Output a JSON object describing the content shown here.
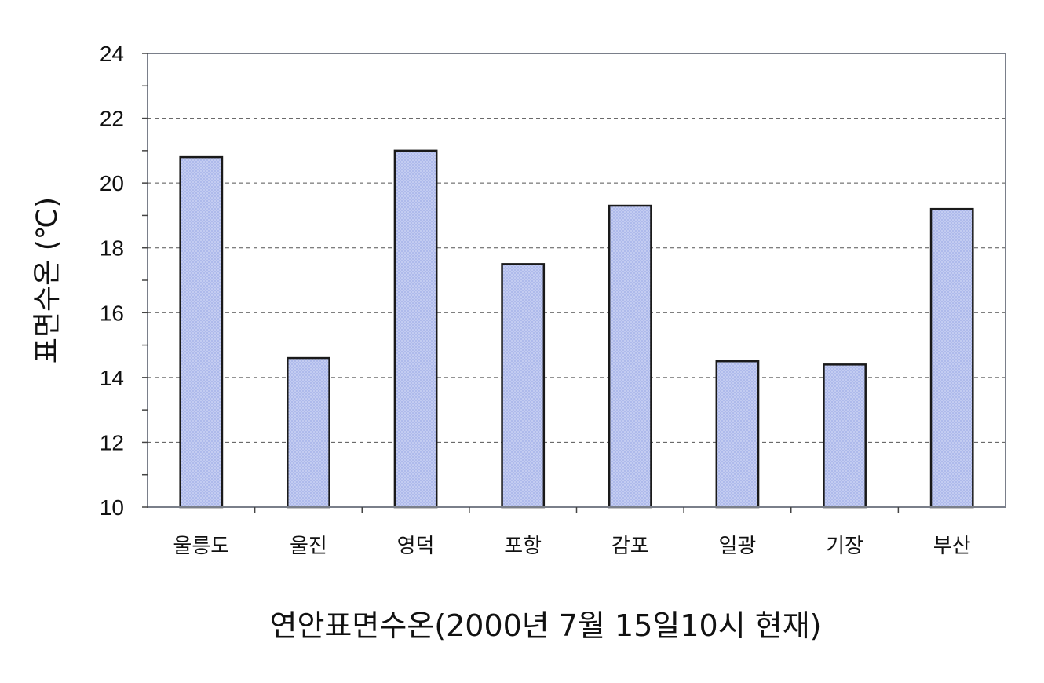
{
  "chart_data": {
    "type": "bar",
    "title": "",
    "xlabel": "연안표면수온(2000년 7월 15일10시 현재)",
    "ylabel": "표면수온 (℃)",
    "ylim": [
      10,
      24
    ],
    "yticks": [
      10,
      12,
      14,
      16,
      18,
      20,
      22,
      24
    ],
    "categories": [
      "울릉도",
      "울진",
      "영덕",
      "포항",
      "감포",
      "일광",
      "기장",
      "부산"
    ],
    "values": [
      20.8,
      14.6,
      21.0,
      17.5,
      19.3,
      14.5,
      14.4,
      19.2
    ],
    "grid": true,
    "legend": "none",
    "colors": {
      "bar_fill": "#c4cdf2",
      "bar_stroke": "#1a1a1a",
      "grid": "#555555",
      "frame": "#7a7f8a"
    }
  }
}
